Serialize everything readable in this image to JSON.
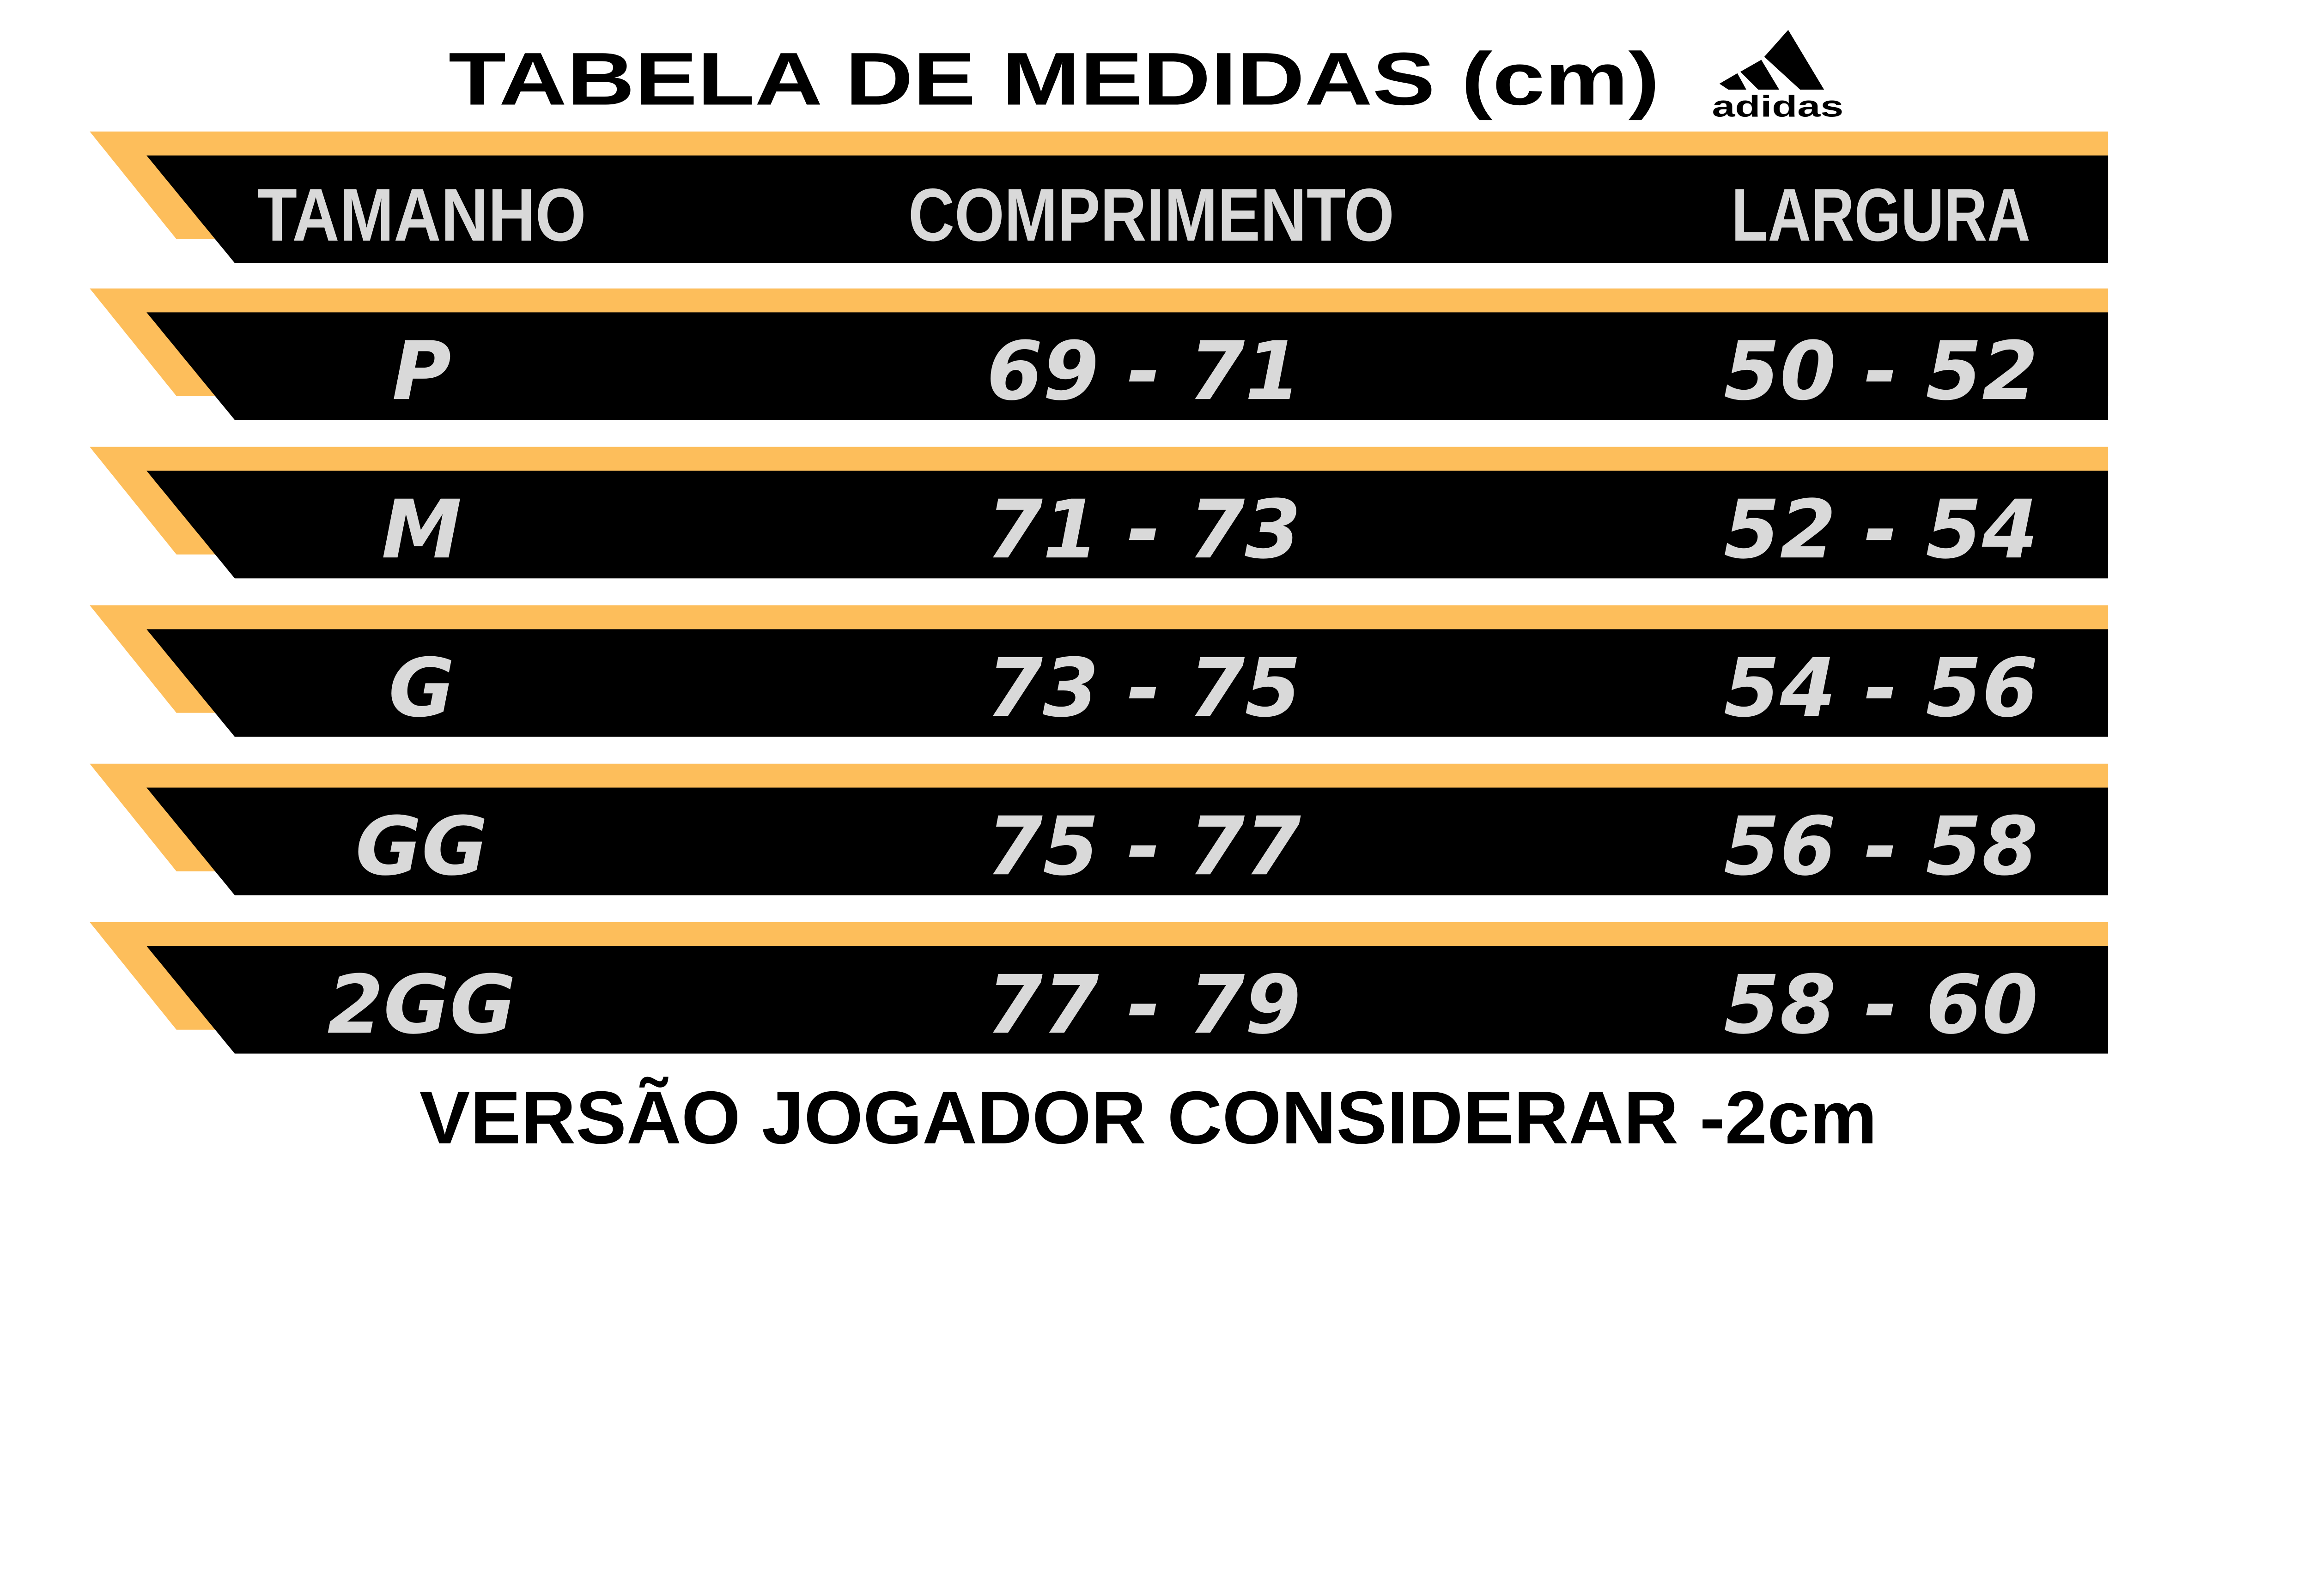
{
  "title": "TABELA DE MEDIDAS (cm)",
  "logo": {
    "text": "adidas",
    "icon": "adidas-three-stripes-icon"
  },
  "colors": {
    "accent": "#FDBE5B",
    "band": "#000000",
    "text": "#D9D9D9"
  },
  "table": {
    "headers": [
      "TAMANHO",
      "COMPRIMENTO",
      "LARGURA"
    ],
    "rows": [
      {
        "size": "P",
        "length": "69 - 71",
        "width": "50 - 52"
      },
      {
        "size": "M",
        "length": "71 - 73",
        "width": "52 - 54"
      },
      {
        "size": "G",
        "length": "73 - 75",
        "width": "54 - 56"
      },
      {
        "size": "GG",
        "length": "75 - 77",
        "width": "56 - 58"
      },
      {
        "size": "2GG",
        "length": "77 - 79",
        "width": "58 - 60"
      }
    ]
  },
  "footer": "VERSÃO JOGADOR CONSIDERAR -2cm"
}
